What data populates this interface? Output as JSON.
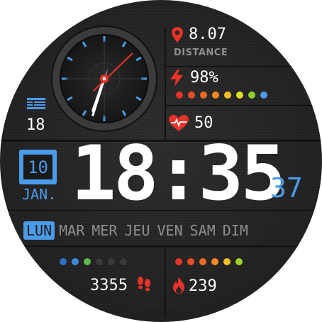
{
  "top_stats": {
    "distance_value": "8.07",
    "distance_label": "DISTANCE",
    "battery_value": "98%",
    "heart_rate": "50"
  },
  "left_widget": {
    "value": "18"
  },
  "date": {
    "day": "10",
    "month": "JAN."
  },
  "time": {
    "hours_minutes": "18:35",
    "seconds": "37"
  },
  "weekdays": {
    "items": [
      "LUN",
      "MAR",
      "MER",
      "JEU",
      "VEN",
      "SAM",
      "DIM"
    ],
    "active": "LUN"
  },
  "bottom": {
    "steps": "3355",
    "calories": "239"
  },
  "colors": {
    "accent": "#4c9be8",
    "red": "#e8322a",
    "battery_dots": [
      "#e8322a",
      "#ea4a26",
      "#ec6a24",
      "#f08a22",
      "#f5c021",
      "#dce020",
      "#8ed02a",
      "#4c9be8"
    ],
    "steps_dots": [
      "#2f6fc4",
      "#3c8ae0",
      "#5fb84a",
      "#3a3a3a",
      "#3a3a3a",
      "#3a3a3a"
    ],
    "calorie_dots": [
      "#e8322a",
      "#ea4a26",
      "#ec6a24",
      "#f08a22",
      "#f5c021",
      "#9ed42a"
    ]
  },
  "icons": {
    "distance": "location-pin-icon",
    "battery": "lightning-icon",
    "heart": "heart-pulse-icon",
    "list": "list-icon",
    "steps": "footsteps-icon",
    "calories": "flame-icon"
  }
}
